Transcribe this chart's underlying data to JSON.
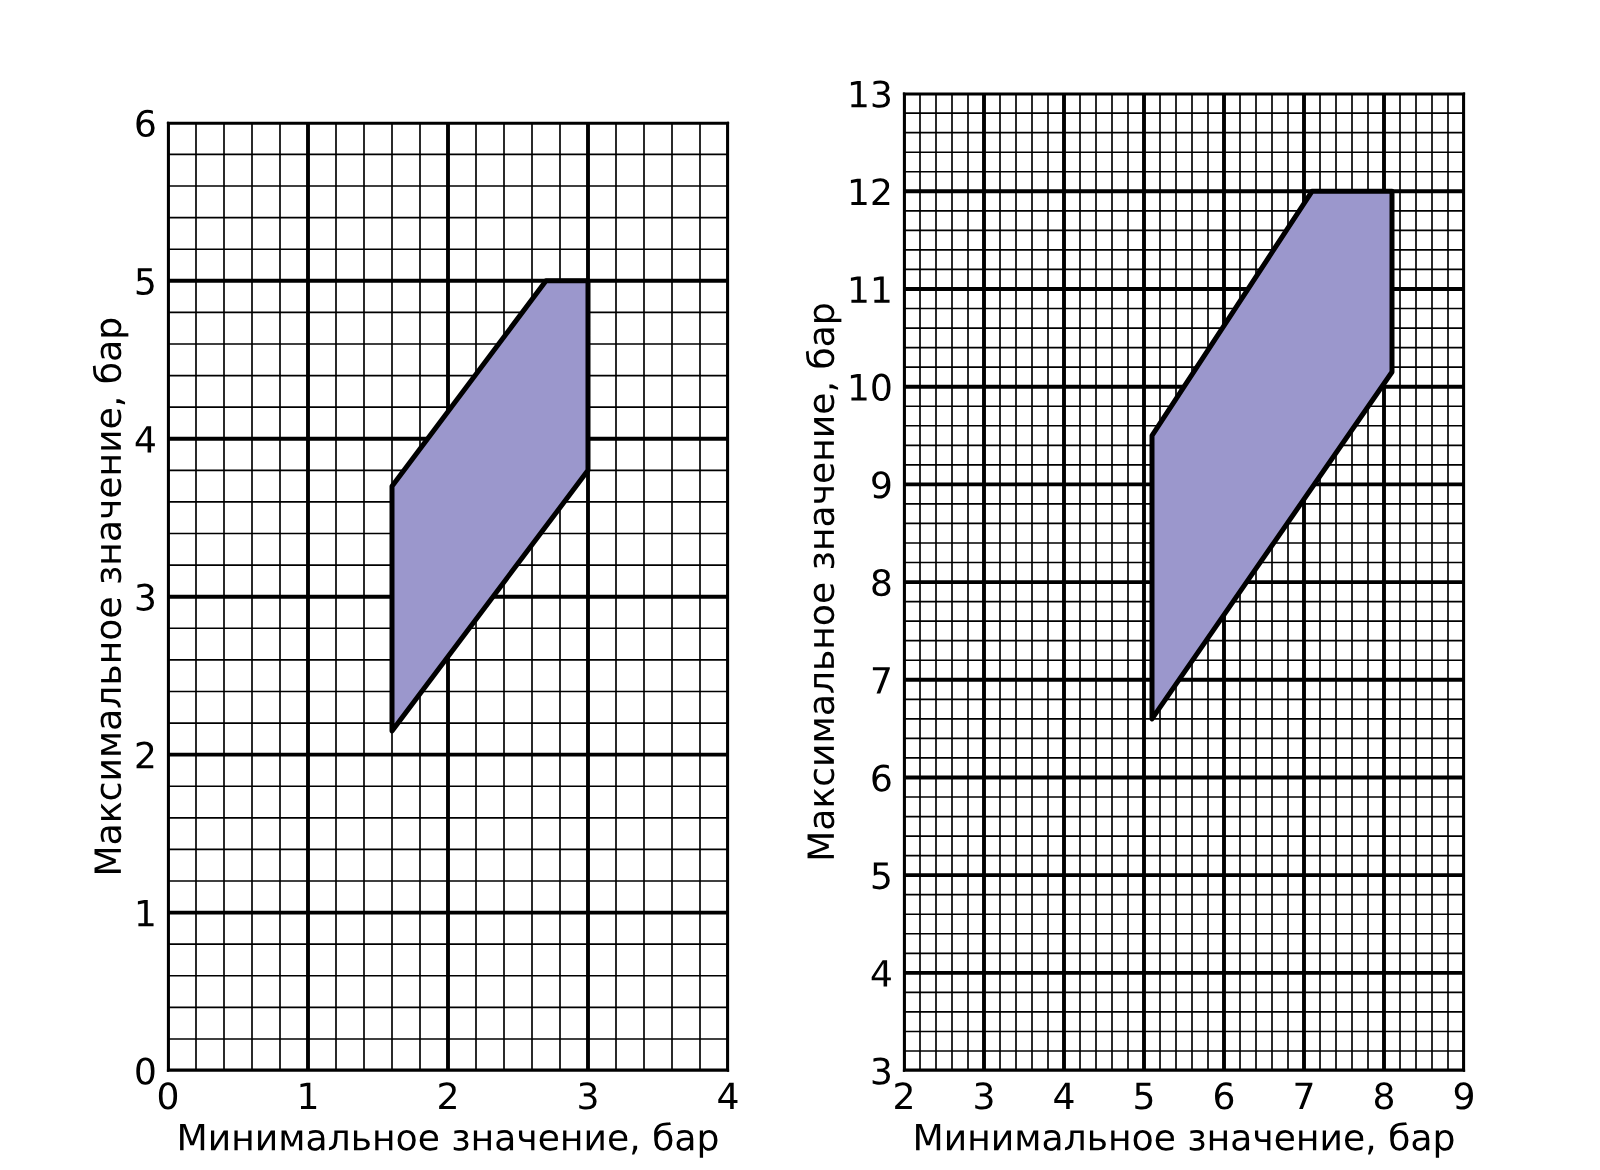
{
  "chart_data": [
    {
      "type": "area",
      "xlabel": "Минимальное значение, бар",
      "ylabel": "Максимальное значение, бар",
      "grid": true,
      "xlim": [
        0,
        4
      ],
      "ylim": [
        0,
        6
      ],
      "xticks": [
        0,
        {
          "value": 0.2,
          "label": null
        },
        {
          "value": 0.4,
          "label": null
        },
        {
          "value": 0.6,
          "label": null
        },
        {
          "value": 0.8,
          "label": null
        },
        1,
        {
          "value": 1.2,
          "label": null
        },
        {
          "value": 1.4,
          "label": null
        },
        {
          "value": 1.6,
          "label": null
        },
        {
          "value": 1.8,
          "label": null
        },
        2,
        {
          "value": 2.2,
          "label": null
        },
        {
          "value": 2.4,
          "label": null
        },
        {
          "value": 2.6,
          "label": null
        },
        {
          "value": 2.8,
          "label": null
        },
        3,
        {
          "value": 3.2,
          "label": null
        },
        {
          "value": 3.4,
          "label": null
        },
        {
          "value": 3.6,
          "label": null
        },
        {
          "value": 3.8,
          "label": null
        },
        4
      ],
      "yticks": [
        0,
        {
          "value": 0.2,
          "label": null
        },
        {
          "value": 0.4,
          "label": null
        },
        {
          "value": 0.6,
          "label": null
        },
        {
          "value": 0.8,
          "label": null
        },
        1,
        {
          "value": 1.2,
          "label": null
        },
        {
          "value": 1.4,
          "label": null
        },
        {
          "value": 1.6,
          "label": null
        },
        {
          "value": 1.8,
          "label": null
        },
        2,
        {
          "value": 2.2,
          "label": null
        },
        {
          "value": 2.4,
          "label": null
        },
        {
          "value": 2.6,
          "label": null
        },
        {
          "value": 2.8,
          "label": null
        },
        3,
        {
          "value": 3.2,
          "label": null
        },
        {
          "value": 3.4,
          "label": null
        },
        {
          "value": 3.6,
          "label": null
        },
        {
          "value": 3.8,
          "label": null
        },
        4,
        {
          "value": 4.2,
          "label": null
        },
        {
          "value": 4.4,
          "label": null
        },
        {
          "value": 4.6,
          "label": null
        },
        {
          "value": 4.8,
          "label": null
        },
        5,
        {
          "value": 5.2,
          "label": null
        },
        {
          "value": 5.4,
          "label": null
        },
        {
          "value": 5.6,
          "label": null
        },
        {
          "value": 5.8,
          "label": null
        },
        6
      ],
      "series": [
        {
          "color": "#9b97cc",
          "x": [
            1.6,
            2.7,
            3.0,
            3.0,
            1.6,
            1.6
          ],
          "values": [
            3.7,
            5.0,
            5.0,
            3.8,
            2.15,
            3.7
          ]
        }
      ]
    },
    {
      "type": "area",
      "xlabel": "Минимальное значение, бар",
      "ylabel": "Максимальное значение, бар",
      "grid": true,
      "xlim": [
        2,
        9
      ],
      "ylim": [
        3,
        13
      ],
      "xticks": [
        2,
        {
          "value": 2.2,
          "label": null
        },
        {
          "value": 2.4,
          "label": null
        },
        {
          "value": 2.6,
          "label": null
        },
        {
          "value": 2.8,
          "label": null
        },
        3,
        {
          "value": 3.2,
          "label": null
        },
        {
          "value": 3.4,
          "label": null
        },
        {
          "value": 3.6,
          "label": null
        },
        {
          "value": 3.8,
          "label": null
        },
        4,
        {
          "value": 4.2,
          "label": null
        },
        {
          "value": 4.4,
          "label": null
        },
        {
          "value": 4.6,
          "label": null
        },
        {
          "value": 4.8,
          "label": null
        },
        5,
        {
          "value": 5.2,
          "label": null
        },
        {
          "value": 5.4,
          "label": null
        },
        {
          "value": 5.6,
          "label": null
        },
        {
          "value": 5.8,
          "label": null
        },
        6,
        {
          "value": 6.2,
          "label": null
        },
        {
          "value": 6.4,
          "label": null
        },
        {
          "value": 6.6,
          "label": null
        },
        {
          "value": 6.8,
          "label": null
        },
        7,
        {
          "value": 7.2,
          "label": null
        },
        {
          "value": 7.4,
          "label": null
        },
        {
          "value": 7.6,
          "label": null
        },
        {
          "value": 7.8,
          "label": null
        },
        8,
        {
          "value": 8.2,
          "label": null
        },
        {
          "value": 8.4,
          "label": null
        },
        {
          "value": 8.6,
          "label": null
        },
        {
          "value": 8.8,
          "label": null
        },
        9
      ],
      "yticks": [
        3,
        {
          "value": 3.2,
          "label": null
        },
        {
          "value": 3.4,
          "label": null
        },
        {
          "value": 3.6,
          "label": null
        },
        {
          "value": 3.8,
          "label": null
        },
        4,
        {
          "value": 4.2,
          "label": null
        },
        {
          "value": 4.4,
          "label": null
        },
        {
          "value": 4.6,
          "label": null
        },
        {
          "value": 4.8,
          "label": null
        },
        5,
        {
          "value": 5.2,
          "label": null
        },
        {
          "value": 5.4,
          "label": null
        },
        {
          "value": 5.6,
          "label": null
        },
        {
          "value": 5.8,
          "label": null
        },
        6,
        {
          "value": 6.2,
          "label": null
        },
        {
          "value": 6.4,
          "label": null
        },
        {
          "value": 6.6,
          "label": null
        },
        {
          "value": 6.8,
          "label": null
        },
        7,
        {
          "value": 7.2,
          "label": null
        },
        {
          "value": 7.4,
          "label": null
        },
        {
          "value": 7.6,
          "label": null
        },
        {
          "value": 7.8,
          "label": null
        },
        8,
        {
          "value": 8.2,
          "label": null
        },
        {
          "value": 8.4,
          "label": null
        },
        {
          "value": 8.6,
          "label": null
        },
        {
          "value": 8.8,
          "label": null
        },
        9,
        {
          "value": 9.2,
          "label": null
        },
        {
          "value": 9.4,
          "label": null
        },
        {
          "value": 9.6,
          "label": null
        },
        {
          "value": 9.8,
          "label": null
        },
        10,
        {
          "value": 10.2,
          "label": null
        },
        {
          "value": 10.4,
          "label": null
        },
        {
          "value": 10.6,
          "label": null
        },
        {
          "value": 10.8,
          "label": null
        },
        11,
        {
          "value": 11.2,
          "label": null
        },
        {
          "value": 11.4,
          "label": null
        },
        {
          "value": 11.6,
          "label": null
        },
        {
          "value": 11.8,
          "label": null
        },
        12,
        {
          "value": 12.2,
          "label": null
        },
        {
          "value": 12.4,
          "label": null
        },
        {
          "value": 12.6,
          "label": null
        },
        {
          "value": 12.8,
          "label": null
        },
        13
      ],
      "series": [
        {
          "color": "#9b97cc",
          "x": [
            5.1,
            7.1,
            8.1,
            8.1,
            5.1,
            5.1
          ],
          "values": [
            9.5,
            12.0,
            12.0,
            10.15,
            6.6,
            9.5
          ]
        }
      ]
    }
  ]
}
